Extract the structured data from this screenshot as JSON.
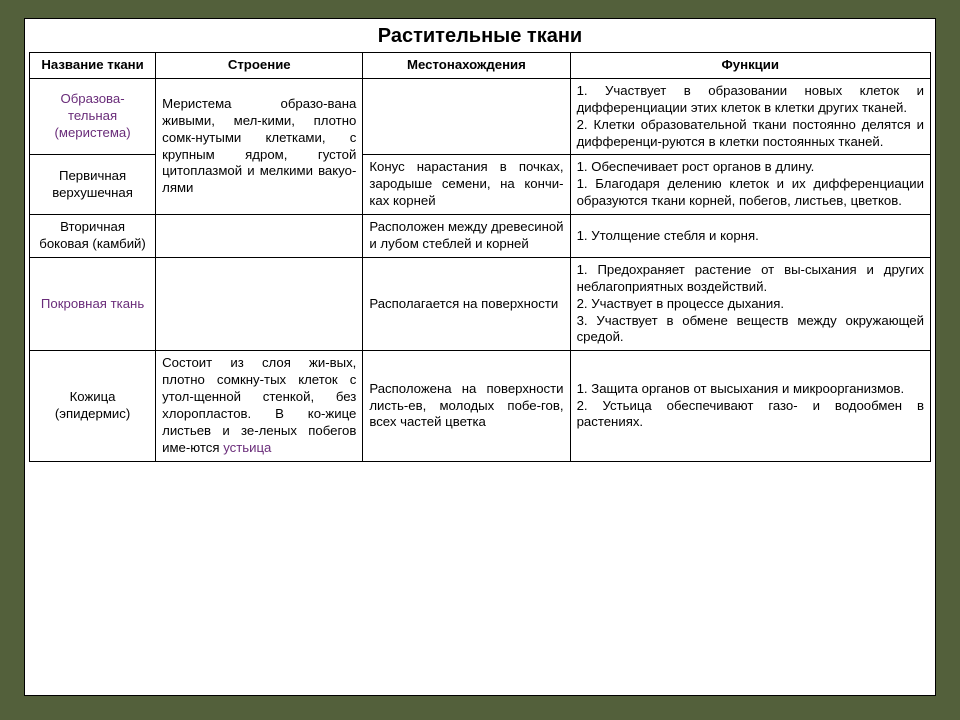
{
  "document": {
    "title": "Растительные ткани",
    "background_color": "#53603b",
    "sheet_color": "#ffffff",
    "border_color": "#000000",
    "highlight_color": "#6a2d7a",
    "text_color": "#000000",
    "title_fontsize": 20,
    "body_fontsize": 13,
    "font_family": "Arial"
  },
  "table": {
    "columns": [
      {
        "label": "Название ткани",
        "width_pct": 14
      },
      {
        "label": "Строение",
        "width_pct": 23
      },
      {
        "label": "Местонахождения",
        "width_pct": 23
      },
      {
        "label": "Функции",
        "width_pct": 40
      }
    ],
    "rows": [
      {
        "name": "Образова-\nтельная\n(меристема)",
        "name_highlight": true,
        "structure_rowspan": 2,
        "structure": "Меристема образо-вана живыми, мел-кими, плотно сомк-нутыми клетками, с крупным ядром, густой цитоплазмой и мелкими вакуо-лями",
        "location": "",
        "functions": "1. Участвует в образовании новых клеток и дифференциации этих клеток в клетки других тканей.\n2. Клетки образовательной ткани постоянно делятся и дифференци-руются в клетки постоянных тканей."
      },
      {
        "name": "Первичная верхушечная",
        "name_highlight": false,
        "location": "Конус нарастания в почках, зародыше семени, на кончи-ках корней",
        "functions": "1. Обеспечивает рост органов в длину.\n1. Благодаря делению клеток и их дифференциации образуются ткани корней, побегов, листьев, цветков."
      },
      {
        "name": "Вторичная боковая (камбий)",
        "name_highlight": false,
        "structure": "",
        "location": "Расположен между древесиной и лубом стеблей и корней",
        "functions": "1. Утолщение стебля и корня."
      },
      {
        "name": "Покровная ткань",
        "name_highlight": true,
        "structure": "",
        "location": "Располагается на поверхности",
        "functions": "1. Предохраняет растение от вы-сыхания и других неблагоприятных воздействий.\n2. Участвует в процессе дыхания.\n3. Участвует в обмене веществ между окружающей средой."
      },
      {
        "name": "Кожица (эпидермис)",
        "name_highlight": false,
        "structure_pre": "Состоит из слоя жи-вых, плотно сомкну-тых клеток с утол-щенной стенкой, без хлоропластов. В ко-жице листьев и зе-леных побегов име-ются ",
        "structure_word": "устьица",
        "location": "Расположена на поверхности листь-ев, молодых побе-гов, всех частей цветка",
        "functions": "1. Защита органов от высыхания и микроорганизмов.\n2. Устьица обеспечивают газо- и водообмен в растениях."
      }
    ]
  }
}
